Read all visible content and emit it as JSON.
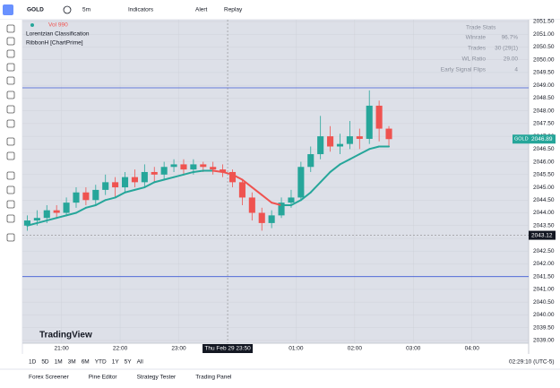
{
  "toolbar": {
    "symbol": "GOLD",
    "interval": "5m",
    "items": [
      "Indicators",
      "Alert",
      "Replay"
    ]
  },
  "chart_data": {
    "type": "candlestick",
    "legend": [
      "Vol 990",
      "Lorentzian Classification",
      "RibbonH [ChartPrime]"
    ],
    "watermark": "TradingView",
    "x": [
      1225,
      1235,
      1245,
      1255,
      1265,
      1275,
      1285,
      1295,
      1305,
      1315,
      1325,
      1335,
      1345,
      1355,
      1365,
      1375,
      1385,
      1395,
      1405,
      1415,
      1425,
      1435,
      1445,
      1455,
      1465,
      1475,
      1485,
      1495,
      1505,
      1515,
      1525,
      1535,
      1545,
      1555,
      1565,
      1575,
      1585,
      1595
    ],
    "open": [
      2043.5,
      2043.7,
      2043.8,
      2044.1,
      2044.0,
      2044.4,
      2044.8,
      2044.5,
      2044.9,
      2045.2,
      2045.0,
      2045.4,
      2045.2,
      2045.6,
      2045.5,
      2045.8,
      2045.9,
      2045.7,
      2045.9,
      2045.8,
      2045.7,
      2045.6,
      2045.2,
      2044.6,
      2044.0,
      2043.6,
      2043.9,
      2044.4,
      2044.6,
      2045.8,
      2046.3,
      2047.0,
      2046.6,
      2046.7,
      2047.0,
      2046.9,
      2048.2,
      2047.3
    ],
    "high": [
      2043.9,
      2044.1,
      2044.3,
      2044.3,
      2044.6,
      2045.0,
      2045.0,
      2045.1,
      2045.5,
      2045.4,
      2045.6,
      2045.7,
      2045.9,
      2045.8,
      2046.0,
      2046.1,
      2046.1,
      2046.1,
      2046.0,
      2046.0,
      2045.9,
      2045.7,
      2045.3,
      2044.8,
      2044.2,
      2044.1,
      2044.6,
      2044.9,
      2046.0,
      2046.6,
      2047.8,
      2047.4,
      2047.1,
      2047.6,
      2047.3,
      2048.8,
      2048.4,
      2047.4
    ],
    "low": [
      2043.3,
      2043.5,
      2043.6,
      2043.8,
      2043.9,
      2044.2,
      2044.3,
      2044.3,
      2044.7,
      2044.6,
      2044.8,
      2045.0,
      2045.0,
      2045.2,
      2045.3,
      2045.6,
      2045.5,
      2045.5,
      2045.6,
      2045.5,
      2045.4,
      2045.0,
      2044.3,
      2043.7,
      2043.3,
      2043.4,
      2043.8,
      2044.2,
      2044.5,
      2045.6,
      2046.1,
      2046.4,
      2046.3,
      2046.5,
      2046.5,
      2046.7,
      2046.8,
      2046.6
    ],
    "close": [
      2043.7,
      2043.8,
      2044.1,
      2044.0,
      2044.4,
      2044.8,
      2044.5,
      2044.9,
      2045.2,
      2045.0,
      2045.4,
      2045.2,
      2045.6,
      2045.5,
      2045.8,
      2045.9,
      2045.7,
      2045.9,
      2045.8,
      2045.7,
      2045.6,
      2045.2,
      2044.6,
      2044.0,
      2043.6,
      2043.9,
      2044.4,
      2044.6,
      2045.8,
      2046.3,
      2047.0,
      2046.6,
      2046.7,
      2047.0,
      2046.9,
      2048.2,
      2047.3,
      2046.89
    ],
    "line_values": [
      2043.5,
      2043.6,
      2043.7,
      2043.8,
      2043.9,
      2044.0,
      2044.2,
      2044.3,
      2044.5,
      2044.6,
      2044.8,
      2044.9,
      2045.0,
      2045.2,
      2045.3,
      2045.4,
      2045.5,
      2045.6,
      2045.65,
      2045.65,
      2045.6,
      2045.5,
      2045.3,
      2045.0,
      2044.7,
      2044.4,
      2044.3,
      2044.3,
      2044.5,
      2044.8,
      2045.2,
      2045.6,
      2045.9,
      2046.1,
      2046.3,
      2046.5,
      2046.6,
      2046.6
    ],
    "colors": {
      "up": "#26a69a",
      "down": "#ef5350"
    },
    "hlines": [
      2048.9,
      2041.5
    ],
    "hline_color": "#3f5ad6",
    "last_price": 2046.89,
    "crosshair": {
      "x": {
        "value": 1430,
        "label": "Thu Feb 29  23:50"
      },
      "y": 2043.12
    },
    "xlim": [
      1220,
      1738
    ],
    "ylim": [
      2038.89,
      2051.57
    ],
    "xticks": [
      {
        "value": 1260,
        "label": "21:00"
      },
      {
        "value": 1320,
        "label": "22:00"
      },
      {
        "value": 1380,
        "label": "23:00"
      },
      {
        "value": 1500,
        "label": "01:00"
      },
      {
        "value": 1560,
        "label": "02:00"
      },
      {
        "value": 1620,
        "label": "03:00"
      },
      {
        "value": 1680,
        "label": "04:00"
      }
    ],
    "yticks": [
      {
        "value": 2039,
        "label": "2039.00"
      },
      {
        "value": 2039.5,
        "label": "2039.50"
      },
      {
        "value": 2040,
        "label": "2040.00"
      },
      {
        "value": 2040.5,
        "label": "2040.50"
      },
      {
        "value": 2041,
        "label": "2041.00"
      },
      {
        "value": 2041.5,
        "label": "2041.50"
      },
      {
        "value": 2042,
        "label": "2042.00"
      },
      {
        "value": 2042.5,
        "label": "2042.50"
      },
      {
        "value": 2043,
        "label": "2043.00"
      },
      {
        "value": 2043.5,
        "label": "2043.50"
      },
      {
        "value": 2044,
        "label": "2044.00"
      },
      {
        "value": 2044.5,
        "label": "2044.50"
      },
      {
        "value": 2045,
        "label": "2045.00"
      },
      {
        "value": 2045.5,
        "label": "2045.50"
      },
      {
        "value": 2046,
        "label": "2046.00"
      },
      {
        "value": 2046.5,
        "label": "2046.50"
      },
      {
        "value": 2047,
        "label": "2047.00"
      },
      {
        "value": 2047.5,
        "label": "2047.50"
      },
      {
        "value": 2048,
        "label": "2048.00"
      },
      {
        "value": 2048.5,
        "label": "2048.50"
      },
      {
        "value": 2049,
        "label": "2049.00"
      },
      {
        "value": 2049.5,
        "label": "2049.50"
      },
      {
        "value": 2050,
        "label": "2050.00"
      },
      {
        "value": 2050.5,
        "label": "2050.50"
      },
      {
        "value": 2051,
        "label": "2051.00"
      },
      {
        "value": 2051.5,
        "label": "2051.50"
      }
    ],
    "grid": true,
    "stats": {
      "title": "Trade Stats",
      "rows": [
        [
          "Winrate",
          "96.7%"
        ],
        [
          "Trades",
          "30 (29|1)"
        ],
        [
          "WL Ratio",
          "29.00"
        ],
        [
          "Early Signal Flips",
          "4"
        ]
      ]
    }
  },
  "range_bar": {
    "ranges": [
      "1D",
      "5D",
      "1M",
      "3M",
      "6M",
      "YTD",
      "1Y",
      "5Y",
      "All"
    ],
    "clock": "02:29:10 (UTC-5)"
  },
  "bottom_tabs": [
    "Forex Screener",
    "Pine Editor",
    "Strategy Tester",
    "Trading Panel"
  ]
}
